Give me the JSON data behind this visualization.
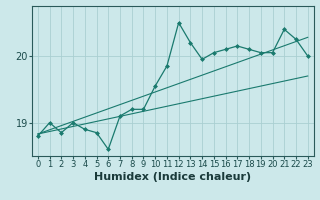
{
  "title": "",
  "xlabel": "Humidex (Indice chaleur)",
  "ylabel": "",
  "bg_color": "#cce8ea",
  "grid_color": "#aacfd2",
  "line_color": "#1a7a6e",
  "marker_color": "#1a7a6e",
  "x_ticks": [
    0,
    1,
    2,
    3,
    4,
    5,
    6,
    7,
    8,
    9,
    10,
    11,
    12,
    13,
    14,
    15,
    16,
    17,
    18,
    19,
    20,
    21,
    22,
    23
  ],
  "y_ticks": [
    19,
    20
  ],
  "ylim": [
    18.5,
    20.75
  ],
  "xlim": [
    -0.5,
    23.5
  ],
  "series0_x": [
    0,
    1,
    2,
    3,
    4,
    5,
    6,
    7,
    8,
    9,
    10,
    11,
    12,
    13,
    14,
    15,
    16,
    17,
    18,
    19,
    20,
    21,
    22,
    23
  ],
  "series0_y": [
    18.8,
    19.0,
    18.85,
    19.0,
    18.9,
    18.85,
    18.6,
    19.1,
    19.2,
    19.2,
    19.55,
    19.85,
    20.5,
    20.2,
    19.95,
    20.05,
    20.1,
    20.15,
    20.1,
    20.05,
    20.05,
    20.4,
    20.25,
    20.0
  ],
  "trend1_x": [
    0,
    23
  ],
  "trend1_y": [
    18.83,
    20.28
  ],
  "trend2_x": [
    0,
    23
  ],
  "trend2_y": [
    18.83,
    19.7
  ],
  "font_size_xlabel": 8,
  "font_size_ytick": 7,
  "font_size_xtick": 6
}
